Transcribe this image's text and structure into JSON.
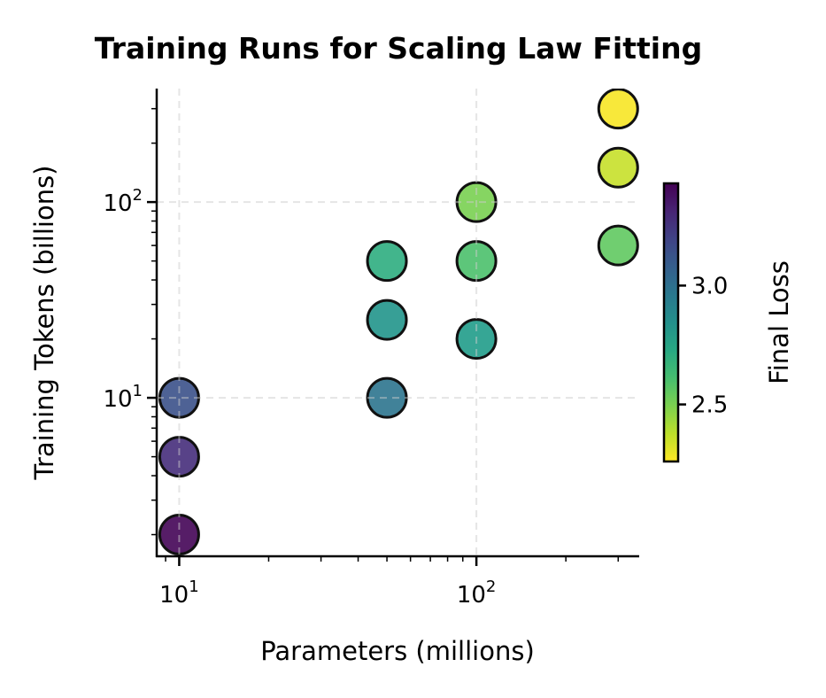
{
  "chart_data": {
    "type": "scatter",
    "title": "Training Runs for Scaling Law Fitting",
    "xlabel": "Parameters (millions)",
    "ylabel": "Training Tokens (billions)",
    "xscale": "log",
    "yscale": "log",
    "xlim": [
      8.4,
      353
    ],
    "ylim": [
      1.55,
      380
    ],
    "x_ticks": [
      {
        "value": 10,
        "base": "10",
        "exp": "1"
      },
      {
        "value": 100,
        "base": "10",
        "exp": "2"
      }
    ],
    "y_ticks": [
      {
        "value": 10,
        "base": "10",
        "exp": "1"
      },
      {
        "value": 100,
        "base": "10",
        "exp": "2"
      }
    ],
    "grid": true,
    "colorbar": {
      "label": "Final Loss",
      "colormap": "viridis_r",
      "range": [
        2.26,
        3.43
      ],
      "ticks": [
        {
          "value": 2.5,
          "label": "2.5"
        },
        {
          "value": 3.0,
          "label": "3.0"
        }
      ]
    },
    "points": [
      {
        "x": 10,
        "y": 2,
        "loss": 3.42
      },
      {
        "x": 10,
        "y": 5,
        "loss": 3.28
      },
      {
        "x": 10,
        "y": 10,
        "loss": 3.14
      },
      {
        "x": 50,
        "y": 10,
        "loss": 2.98
      },
      {
        "x": 50,
        "y": 25,
        "loss": 2.82
      },
      {
        "x": 50,
        "y": 50,
        "loss": 2.7
      },
      {
        "x": 100,
        "y": 20,
        "loss": 2.79
      },
      {
        "x": 100,
        "y": 50,
        "loss": 2.6
      },
      {
        "x": 100,
        "y": 100,
        "loss": 2.5
      },
      {
        "x": 300,
        "y": 60,
        "loss": 2.55
      },
      {
        "x": 300,
        "y": 150,
        "loss": 2.36
      },
      {
        "x": 300,
        "y": 300,
        "loss": 2.27
      }
    ]
  }
}
